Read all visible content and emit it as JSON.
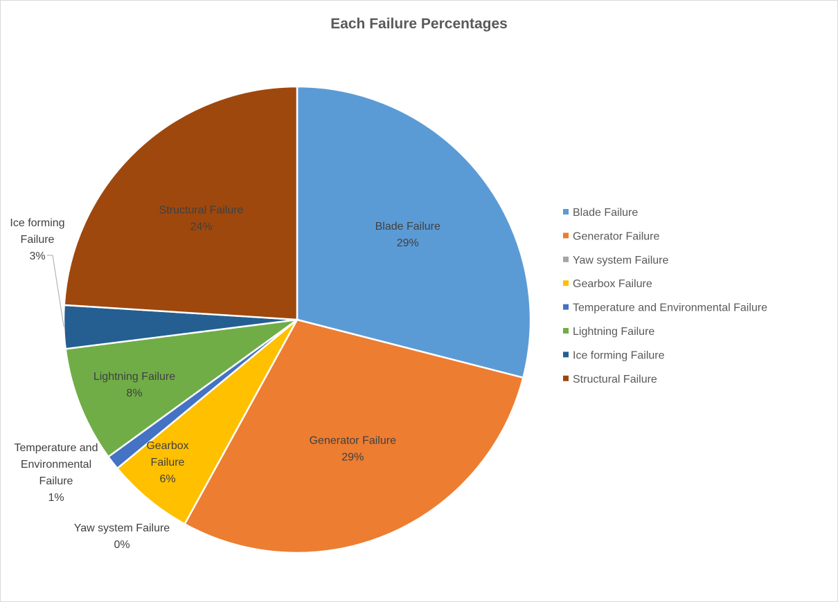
{
  "chart_data": {
    "type": "pie",
    "title": "Each Failure Percentages",
    "legend_position": "right",
    "slices": [
      {
        "name": "Blade Failure",
        "value": 29,
        "label": "29%",
        "color": "#5b9bd5",
        "label_lines": [
          "Blade Failure",
          "29%"
        ]
      },
      {
        "name": "Generator Failure",
        "value": 29,
        "label": "29%",
        "color": "#ed7d31",
        "label_lines": [
          "Generator Failure",
          "29%"
        ]
      },
      {
        "name": "Yaw system Failure",
        "value": 0,
        "label": "0%",
        "color": "#a5a5a5",
        "label_lines": [
          "Yaw system Failure",
          "0%"
        ]
      },
      {
        "name": "Gearbox Failure",
        "value": 6,
        "label": "6%",
        "color": "#ffc000",
        "label_lines": [
          "Gearbox",
          "Failure",
          "6%"
        ]
      },
      {
        "name": "Temperature and Environmental Failure",
        "value": 1,
        "label": "1%",
        "color": "#4472c4",
        "label_lines": [
          "Temperature and",
          "Environmental",
          "Failure",
          "1%"
        ]
      },
      {
        "name": "Lightning Failure",
        "value": 8,
        "label": "8%",
        "color": "#70ad47",
        "label_lines": [
          "Lightning Failure",
          "8%"
        ]
      },
      {
        "name": "Ice forming Failure",
        "value": 3,
        "label": "3%",
        "color": "#255e91",
        "label_lines": [
          "Ice forming",
          "Failure",
          "3%"
        ]
      },
      {
        "name": "Structural Failure",
        "value": 24,
        "label": "24%",
        "color": "#9e480e",
        "label_lines": [
          "Structural Failure",
          "24%"
        ]
      }
    ]
  }
}
